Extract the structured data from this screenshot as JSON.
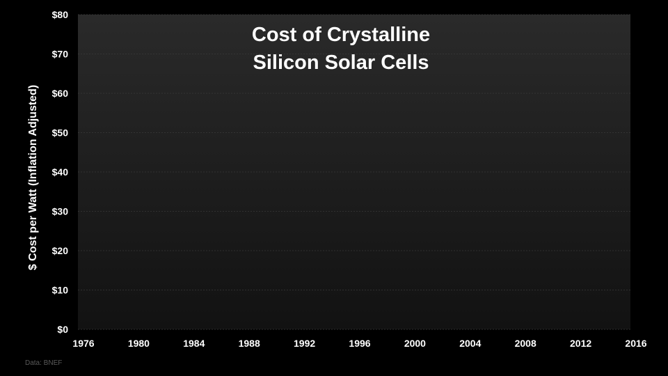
{
  "chart_data": {
    "type": "line",
    "title_lines": [
      "Cost of Crystalline",
      "Silicon Solar Cells"
    ],
    "ylabel": "$ Cost per Watt (Inflation Adjusted)",
    "xlabel": "",
    "x_ticks": [
      "1976",
      "1980",
      "1984",
      "1988",
      "1992",
      "1996",
      "2000",
      "2004",
      "2008",
      "2012",
      "2016"
    ],
    "y_ticks": [
      "$0",
      "$10",
      "$20",
      "$30",
      "$40",
      "$50",
      "$60",
      "$70",
      "$80"
    ],
    "xlim": [
      1976,
      2016
    ],
    "ylim": [
      0,
      80
    ],
    "grid": true,
    "series": [],
    "source": "Data: BNEF"
  },
  "colors": {
    "background": "#000000",
    "plot_top": "#2a2a2a",
    "plot_bottom": "#121212",
    "gridline": "#3a3a3a",
    "text": "#ffffff",
    "source_text": "#5a5a5a"
  }
}
